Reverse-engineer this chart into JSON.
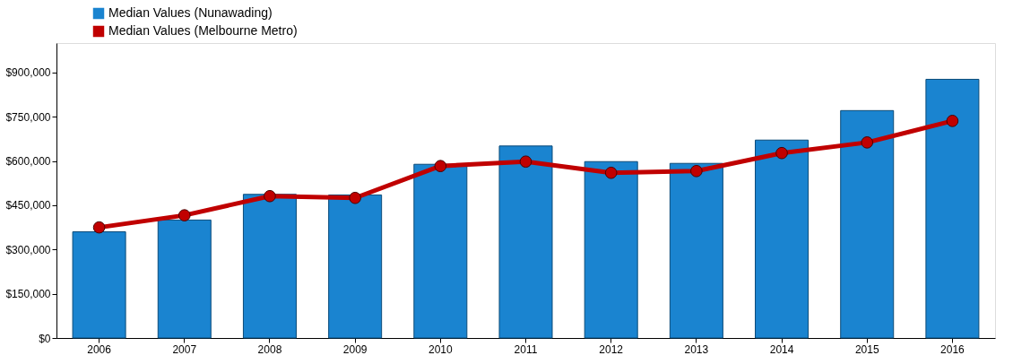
{
  "chart_data": {
    "type": "bar",
    "categories": [
      "2006",
      "2007",
      "2008",
      "2009",
      "2010",
      "2011",
      "2012",
      "2013",
      "2014",
      "2015",
      "2016"
    ],
    "series": [
      {
        "name": "Median Values (Nunawading)",
        "color": "#1a84d0",
        "values": [
          360000,
          400000,
          487000,
          485000,
          589000,
          651000,
          598000,
          592000,
          671000,
          771000,
          877000
        ]
      },
      {
        "name": "Median Values (Melbourne  Metro)",
        "type": "line",
        "color": "#c00000",
        "values": [
          375000,
          416000,
          481000,
          475000,
          583000,
          598000,
          560000,
          566000,
          627000,
          663000,
          736000
        ]
      }
    ],
    "ylim": [
      0,
      1000000
    ],
    "yticks": [
      {
        "value": 0,
        "label": "$0"
      },
      {
        "value": 150000,
        "label": "$150,000"
      },
      {
        "value": 300000,
        "label": "$300,000"
      },
      {
        "value": 450000,
        "label": "$450,000"
      },
      {
        "value": 600000,
        "label": "$600,000"
      },
      {
        "value": 750000,
        "label": "$750,000"
      },
      {
        "value": 900000,
        "label": "$900,000"
      }
    ],
    "grid": false,
    "legend": "top left",
    "marker": "circle",
    "line_style": "solid"
  }
}
